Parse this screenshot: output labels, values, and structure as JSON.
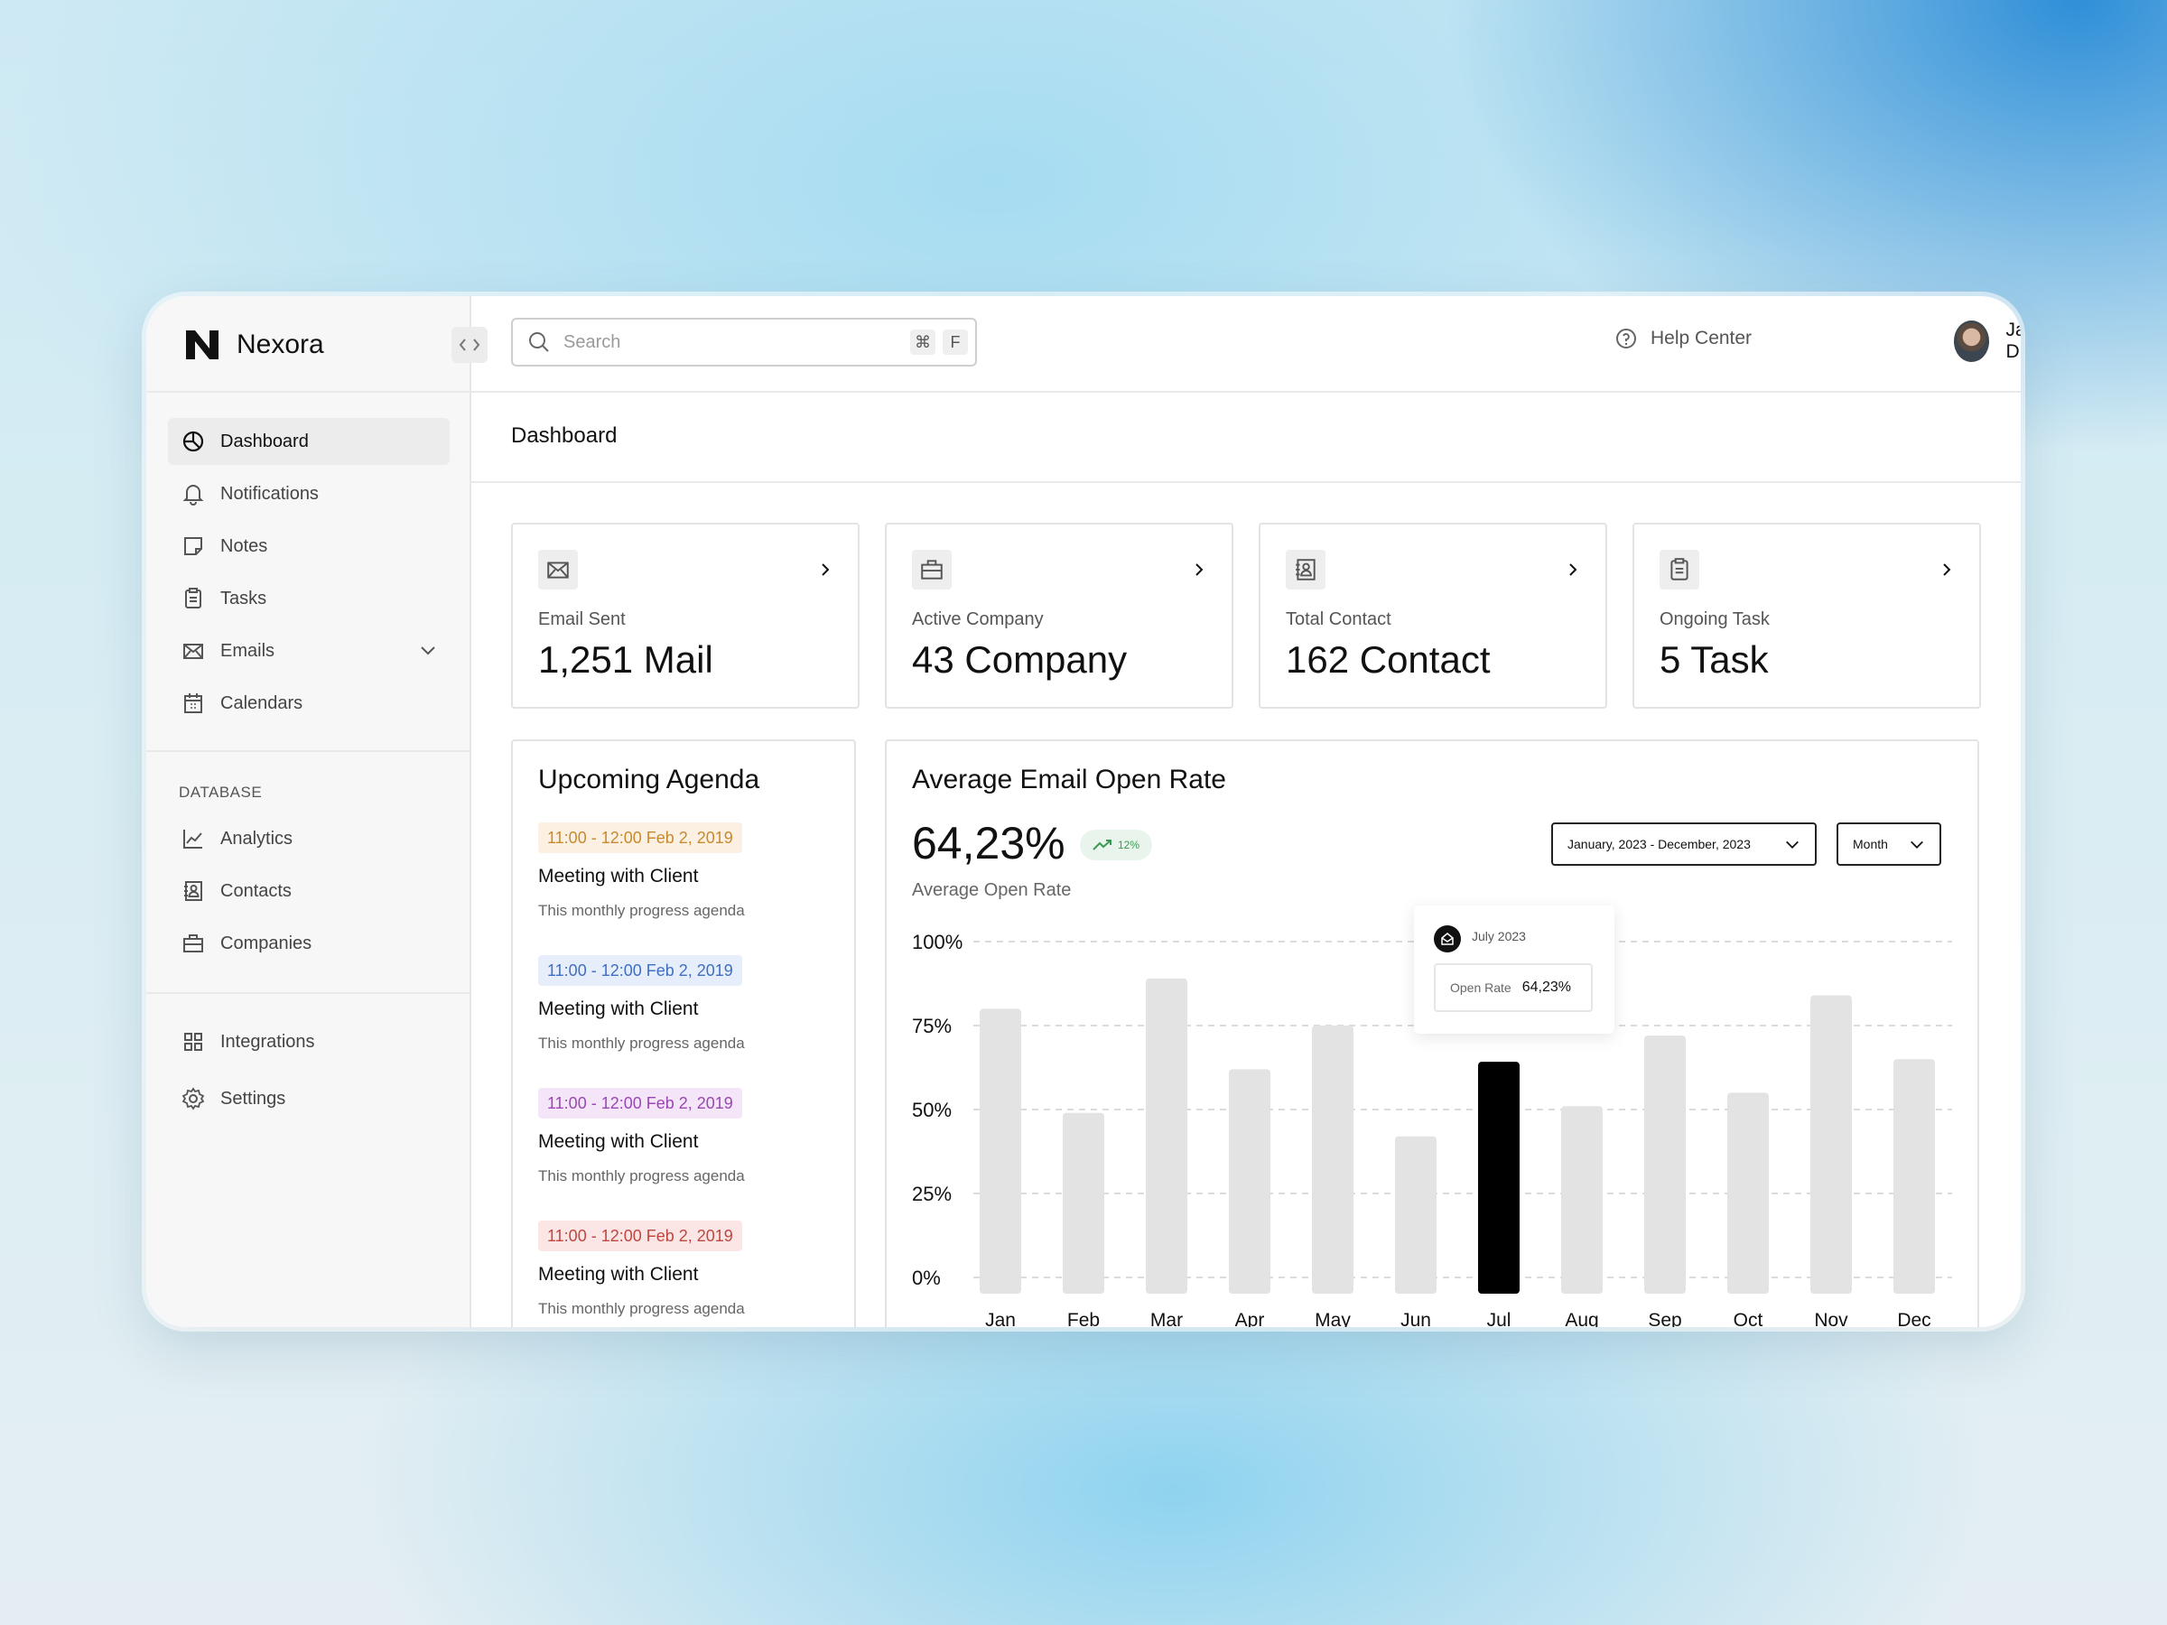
{
  "brand": {
    "name": "Nexora"
  },
  "sidebar": {
    "items": [
      {
        "label": "Dashboard",
        "icon": "dashboard-icon"
      },
      {
        "label": "Notifications",
        "icon": "bell-icon"
      },
      {
        "label": "Notes",
        "icon": "note-icon"
      },
      {
        "label": "Tasks",
        "icon": "clipboard-icon"
      },
      {
        "label": "Emails",
        "icon": "mail-icon"
      },
      {
        "label": "Calendars",
        "icon": "calendar-icon"
      }
    ],
    "section_label": "DATABASE",
    "database_items": [
      {
        "label": "Analytics",
        "icon": "analytics-icon"
      },
      {
        "label": "Contacts",
        "icon": "contacts-icon"
      },
      {
        "label": "Companies",
        "icon": "briefcase-icon"
      }
    ],
    "bottom_items": [
      {
        "label": "Integrations",
        "icon": "grid-icon"
      },
      {
        "label": "Settings",
        "icon": "gear-icon"
      }
    ]
  },
  "header": {
    "search_placeholder": "Search",
    "shortcut_keys": [
      "⌘",
      "F"
    ],
    "help_label": "Help Center",
    "user_name": "Javier. D"
  },
  "page": {
    "title": "Dashboard"
  },
  "stats": [
    {
      "label": "Email Sent",
      "value": "1,251 Mail",
      "icon": "mail-icon"
    },
    {
      "label": "Active Company",
      "value": "43 Company",
      "icon": "briefcase-icon"
    },
    {
      "label": "Total Contact",
      "value": "162 Contact",
      "icon": "contacts-icon"
    },
    {
      "label": "Ongoing Task",
      "value": "5 Task",
      "icon": "clipboard-icon"
    }
  ],
  "agenda": {
    "title": "Upcoming Agenda",
    "items": [
      {
        "time": "11:00 - 12:00 Feb 2, 2019",
        "title": "Meeting with Client",
        "subtitle": "This monthly progress agenda",
        "color": "#c98a2e",
        "bg": "#fbf0e2"
      },
      {
        "time": "11:00 - 12:00 Feb 2, 2019",
        "title": "Meeting with Client",
        "subtitle": "This monthly progress agenda",
        "color": "#3f6fc2",
        "bg": "#e6eefb"
      },
      {
        "time": "11:00 - 12:00 Feb 2, 2019",
        "title": "Meeting with Client",
        "subtitle": "This monthly progress agenda",
        "color": "#9a46b5",
        "bg": "#f4e6f8"
      },
      {
        "time": "11:00 - 12:00 Feb 2, 2019",
        "title": "Meeting with Client",
        "subtitle": "This monthly progress agenda",
        "color": "#c0463f",
        "bg": "#fbe6e5"
      }
    ]
  },
  "chart_panel": {
    "title": "Average Email Open Rate",
    "big_value": "64,23%",
    "badge": "12%",
    "badge_color": "#3a9a55",
    "subtitle": "Average Open Rate",
    "date_range": "January, 2023 - December, 2023",
    "period": "Month",
    "tooltip": {
      "month": "July 2023",
      "label": "Open Rate",
      "value": "64,23%"
    }
  },
  "chart_data": {
    "type": "bar",
    "categories": [
      "Jan",
      "Feb",
      "Mar",
      "Apr",
      "May",
      "Jun",
      "Jul",
      "Aug",
      "Sep",
      "Oct",
      "Nov",
      "Dec"
    ],
    "values": [
      80,
      49,
      89,
      62,
      75,
      42,
      64.23,
      51,
      72,
      55,
      84,
      65
    ],
    "highlight_index": 6,
    "yticks": [
      "100%",
      "75%",
      "50%",
      "25%",
      "0%"
    ],
    "ylim": [
      0,
      100
    ],
    "grid": true,
    "bar_color": "#e3e3e3",
    "highlight_color": "#000000"
  }
}
